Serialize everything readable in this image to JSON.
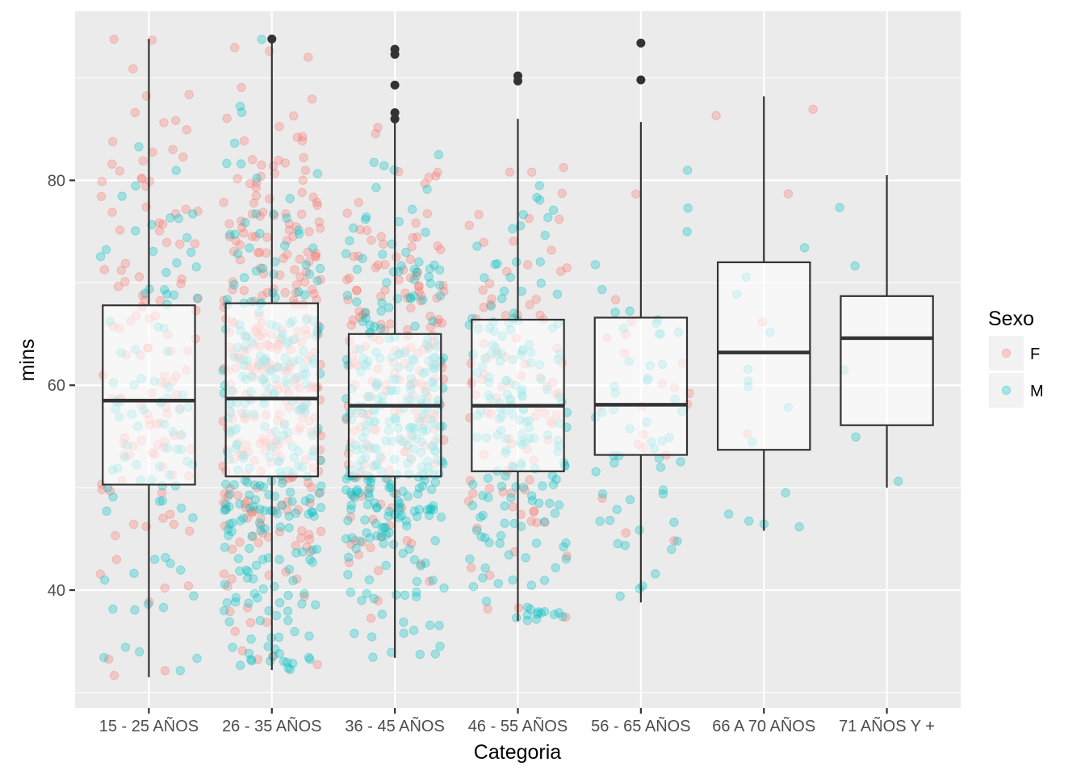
{
  "chart_data": {
    "type": "boxplot",
    "overlay": "jitter-scatter",
    "xlabel": "Categoria",
    "ylabel": "mins",
    "ylim": [
      28.5,
      96.5
    ],
    "yticks": [
      40,
      60,
      80
    ],
    "grid": true,
    "categories": [
      "15 - 25 AÑOS",
      "26 - 35 AÑOS",
      "36 - 45 AÑOS",
      "46 - 55 AÑOS",
      "56 - 65 AÑOS",
      "66 A 70 AÑOS",
      "71 AÑOS Y +"
    ],
    "boxes": [
      {
        "category": "15 - 25 AÑOS",
        "whisker_low": 31.5,
        "q1": 50.3,
        "median": 58.5,
        "q3": 67.8,
        "whisker_high": 93.8,
        "outliers": []
      },
      {
        "category": "26 - 35 AÑOS",
        "whisker_low": 32.2,
        "q1": 51.1,
        "median": 58.7,
        "q3": 68.0,
        "whisker_high": 93.8,
        "outliers": [
          93.8
        ]
      },
      {
        "category": "36 - 45 AÑOS",
        "whisker_low": 33.4,
        "q1": 51.1,
        "median": 58.0,
        "q3": 65.0,
        "whisker_high": 85.6,
        "outliers": [
          86.0,
          86.6,
          89.3,
          92.3,
          92.8
        ]
      },
      {
        "category": "46 - 55 AÑOS",
        "whisker_low": 37.0,
        "q1": 51.6,
        "median": 58.0,
        "q3": 66.4,
        "whisker_high": 86.0,
        "outliers": [
          89.7,
          90.2
        ]
      },
      {
        "category": "56 - 65 AÑOS",
        "whisker_low": 38.8,
        "q1": 53.2,
        "median": 58.1,
        "q3": 66.6,
        "whisker_high": 85.7,
        "outliers": [
          89.8,
          93.4
        ]
      },
      {
        "category": "66 A 70 AÑOS",
        "whisker_low": 45.8,
        "q1": 53.7,
        "median": 63.2,
        "q3": 72.0,
        "whisker_high": 88.2,
        "outliers": []
      },
      {
        "category": "71 AÑOS Y +",
        "whisker_low": 50.0,
        "q1": 56.1,
        "median": 64.6,
        "q3": 68.7,
        "whisker_high": 80.5,
        "outliers": []
      }
    ],
    "jitter_series": [
      {
        "name": "F",
        "color": "#F8766D",
        "opacity": 0.3,
        "approx_counts": [
          120,
          300,
          180,
          90,
          20,
          5,
          0
        ]
      },
      {
        "name": "M",
        "color": "#00BFC4",
        "opacity": 0.3,
        "approx_counts": [
          90,
          280,
          320,
          180,
          55,
          14,
          5
        ]
      }
    ],
    "legend": {
      "title": "Sexo",
      "position": "right",
      "items": [
        {
          "label": "F",
          "color": "#F8766D"
        },
        {
          "label": "M",
          "color": "#00BFC4"
        }
      ]
    }
  }
}
